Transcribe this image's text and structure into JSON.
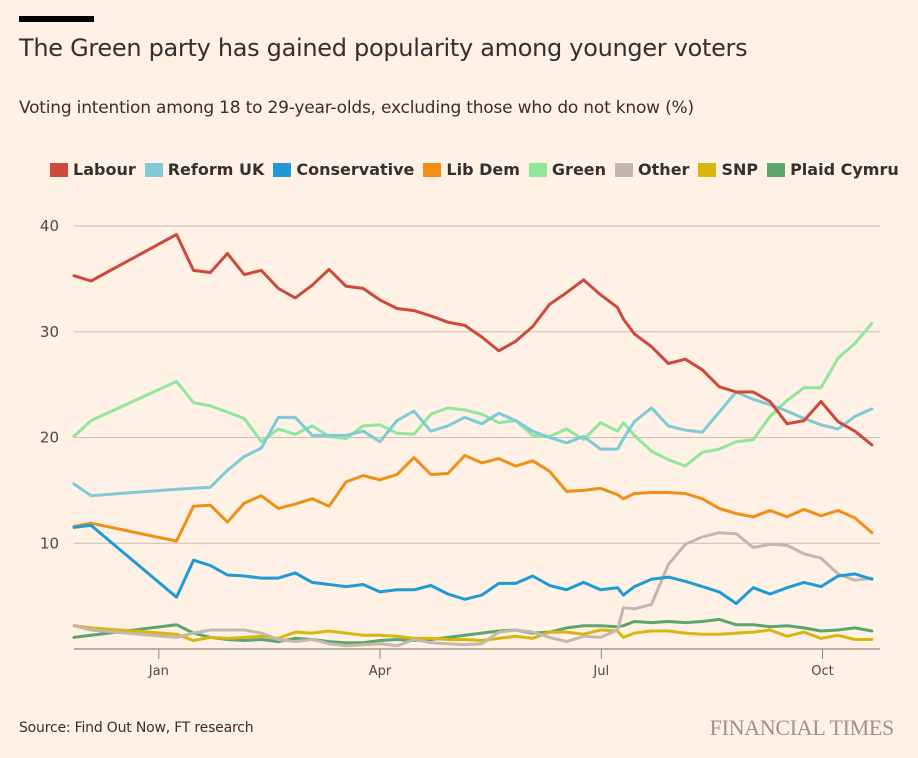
{
  "header": {
    "title": "The Green party has gained popularity among younger voters",
    "subtitle": "Voting intention among 18 to 29-year-olds, excluding those who do not know (%)"
  },
  "footer": {
    "source": "Source: Find Out Now, FT research",
    "brand": "FINANCIAL TIMES"
  },
  "chart_data": {
    "type": "line",
    "title": "The Green party has gained popularity among younger voters",
    "subtitle": "Voting intention among 18 to 29-year-olds, excluding those who do not know (%)",
    "xlabel": "",
    "ylabel": "",
    "x_unit": "months from Jan (Jan=0, Apr=3, Jul=6, Oct=9)",
    "xlim": [
      -1.15,
      9.78
    ],
    "ylim": [
      0,
      40
    ],
    "yticks": [
      10,
      20,
      30,
      40
    ],
    "xticks": [
      {
        "value": 0,
        "label": "Jan"
      },
      {
        "value": 3,
        "label": "Apr"
      },
      {
        "value": 6,
        "label": "Jul"
      },
      {
        "value": 9,
        "label": "Oct"
      }
    ],
    "grid": true,
    "legend_position": "top-left",
    "x": [
      -1.15,
      -0.92,
      0.24,
      0.47,
      0.7,
      0.93,
      1.16,
      1.39,
      1.62,
      1.85,
      2.08,
      2.31,
      2.54,
      2.77,
      3.0,
      3.23,
      3.46,
      3.69,
      3.92,
      4.15,
      4.38,
      4.61,
      4.84,
      5.07,
      5.3,
      5.53,
      5.76,
      5.99,
      6.22,
      6.3,
      6.45,
      6.68,
      6.91,
      7.14,
      7.37,
      7.6,
      7.83,
      8.06,
      8.29,
      8.52,
      8.75,
      8.98,
      9.21,
      9.44,
      9.67
    ],
    "series": [
      {
        "name": "Labour",
        "color": "#cc4a3c",
        "values": [
          35.3,
          34.8,
          39.2,
          35.8,
          35.6,
          37.4,
          35.4,
          35.8,
          34.1,
          33.2,
          34.4,
          35.9,
          34.3,
          34.1,
          33.0,
          32.2,
          32.0,
          31.5,
          30.9,
          30.6,
          29.5,
          28.2,
          29.1,
          30.5,
          32.6,
          33.7,
          34.9,
          33.5,
          32.3,
          31.2,
          29.8,
          28.6,
          27.0,
          27.4,
          26.4,
          24.8,
          24.3,
          24.3,
          23.4,
          21.3,
          21.6,
          23.4,
          21.5,
          20.6,
          19.3
        ]
      },
      {
        "name": "Reform UK",
        "color": "#7fcad6",
        "values": [
          15.6,
          14.5,
          15.1,
          15.2,
          15.3,
          16.9,
          18.2,
          19.0,
          21.9,
          21.9,
          20.2,
          20.2,
          20.2,
          20.6,
          19.6,
          21.6,
          22.5,
          20.6,
          21.1,
          21.9,
          21.3,
          22.3,
          21.6,
          20.6,
          20.0,
          19.5,
          20.1,
          18.9,
          18.9,
          19.9,
          21.5,
          22.8,
          21.1,
          20.7,
          20.5,
          22.4,
          24.3,
          23.6,
          23.1,
          22.5,
          21.8,
          21.2,
          20.8,
          22.0,
          22.7
        ]
      },
      {
        "name": "Conservative",
        "color": "#1f9ad7",
        "values": [
          11.5,
          11.7,
          4.9,
          8.4,
          7.9,
          7.0,
          6.9,
          6.7,
          6.7,
          7.2,
          6.3,
          6.1,
          5.9,
          6.1,
          5.4,
          5.6,
          5.6,
          6.0,
          5.2,
          4.7,
          5.1,
          6.2,
          6.2,
          6.9,
          6.0,
          5.6,
          6.3,
          5.6,
          5.8,
          5.1,
          5.9,
          6.6,
          6.8,
          6.4,
          5.9,
          5.4,
          4.3,
          5.8,
          5.2,
          5.8,
          6.3,
          5.9,
          6.9,
          7.1,
          6.6
        ]
      },
      {
        "name": "Lib Dem",
        "color": "#f08f15",
        "values": [
          11.6,
          11.9,
          10.2,
          13.5,
          13.6,
          12.0,
          13.8,
          14.5,
          13.3,
          13.7,
          14.2,
          13.5,
          15.8,
          16.4,
          16.0,
          16.5,
          18.1,
          16.5,
          16.6,
          18.3,
          17.6,
          18.0,
          17.3,
          17.8,
          16.8,
          14.9,
          15.0,
          15.2,
          14.6,
          14.2,
          14.7,
          14.8,
          14.8,
          14.7,
          14.2,
          13.3,
          12.8,
          12.5,
          13.1,
          12.5,
          13.2,
          12.6,
          13.1,
          12.4,
          11.0
        ]
      },
      {
        "name": "Green",
        "color": "#8ee79b",
        "values": [
          20.1,
          21.6,
          25.3,
          23.3,
          23.0,
          22.4,
          21.8,
          19.6,
          20.8,
          20.3,
          21.1,
          20.1,
          19.9,
          21.1,
          21.2,
          20.4,
          20.3,
          22.2,
          22.8,
          22.6,
          22.2,
          21.4,
          21.6,
          20.2,
          20.1,
          20.8,
          19.8,
          21.4,
          20.6,
          21.4,
          20.2,
          18.7,
          17.9,
          17.3,
          18.6,
          18.9,
          19.6,
          19.8,
          22.0,
          23.5,
          24.7,
          24.7,
          27.5,
          28.9,
          30.8
        ]
      },
      {
        "name": "Other",
        "color": "#c2b8ad",
        "values": [
          2.2,
          1.8,
          1.1,
          1.5,
          1.8,
          1.8,
          1.8,
          1.5,
          0.9,
          0.7,
          0.9,
          0.5,
          0.3,
          0.4,
          0.5,
          0.3,
          0.9,
          0.6,
          0.5,
          0.4,
          0.5,
          1.6,
          1.8,
          1.6,
          1.1,
          0.7,
          1.2,
          1.1,
          1.8,
          3.9,
          3.8,
          4.2,
          8.0,
          9.9,
          10.6,
          11.0,
          10.9,
          9.6,
          9.9,
          9.8,
          9.0,
          8.6,
          7.1,
          6.5,
          6.7
        ]
      },
      {
        "name": "SNP",
        "color": "#d8b60e",
        "values": [
          2.2,
          2.0,
          1.4,
          0.8,
          1.1,
          1.0,
          1.1,
          1.2,
          1.0,
          1.6,
          1.5,
          1.7,
          1.5,
          1.3,
          1.3,
          1.2,
          1.0,
          1.0,
          0.9,
          0.9,
          0.8,
          1.0,
          1.2,
          1.0,
          1.6,
          1.6,
          1.4,
          1.8,
          1.7,
          1.1,
          1.5,
          1.7,
          1.7,
          1.5,
          1.4,
          1.4,
          1.5,
          1.6,
          1.8,
          1.2,
          1.6,
          1.0,
          1.3,
          0.9,
          0.9
        ]
      },
      {
        "name": "Plaid Cymru",
        "color": "#5ba66d",
        "values": [
          1.1,
          1.3,
          2.3,
          1.5,
          1.1,
          0.9,
          0.8,
          0.9,
          0.7,
          1.0,
          0.9,
          0.7,
          0.6,
          0.6,
          0.8,
          0.9,
          0.8,
          0.9,
          1.1,
          1.3,
          1.5,
          1.7,
          1.8,
          1.5,
          1.6,
          2.0,
          2.2,
          2.2,
          2.1,
          2.2,
          2.6,
          2.5,
          2.6,
          2.5,
          2.6,
          2.8,
          2.3,
          2.3,
          2.1,
          2.2,
          2.0,
          1.7,
          1.8,
          2.0,
          1.7
        ]
      }
    ]
  }
}
